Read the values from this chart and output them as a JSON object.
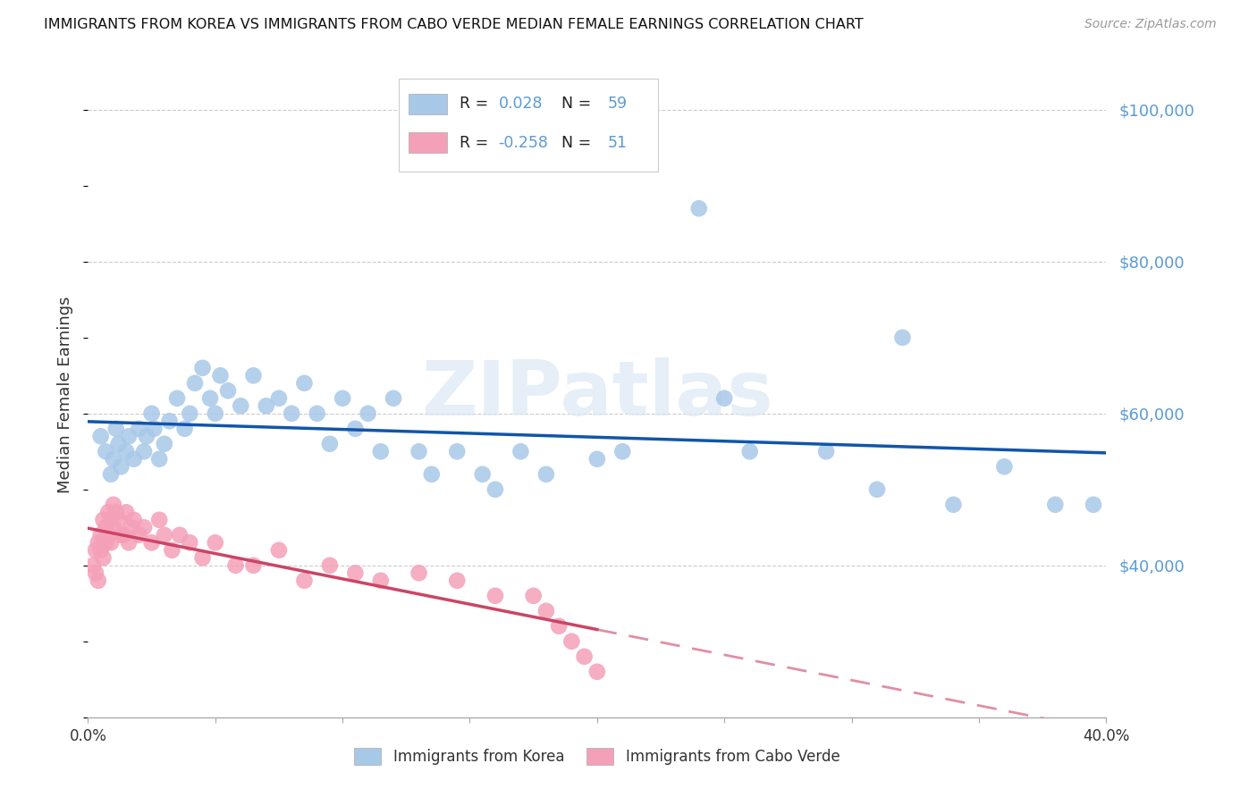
{
  "title": "IMMIGRANTS FROM KOREA VS IMMIGRANTS FROM CABO VERDE MEDIAN FEMALE EARNINGS CORRELATION CHART",
  "source": "Source: ZipAtlas.com",
  "ylabel": "Median Female Earnings",
  "xlim": [
    0.0,
    0.4
  ],
  "ylim": [
    20000,
    105000
  ],
  "yticks": [
    40000,
    60000,
    80000,
    100000
  ],
  "ytick_labels": [
    "$40,000",
    "$60,000",
    "$80,000",
    "$100,000"
  ],
  "xticks": [
    0.0,
    0.05,
    0.1,
    0.15,
    0.2,
    0.25,
    0.3,
    0.35,
    0.4
  ],
  "xtick_labels": [
    "0.0%",
    "",
    "",
    "",
    "",
    "",
    "",
    "",
    "40.0%"
  ],
  "korea_R": "0.028",
  "korea_N": "59",
  "caboverde_R": "-0.258",
  "caboverde_N": "51",
  "korea_color": "#a8c8e8",
  "caboverde_color": "#f4a0b8",
  "trend_korea_color": "#1155aa",
  "trend_caboverde_color": "#cc4466",
  "background_color": "#ffffff",
  "watermark": "ZIPatlas",
  "legend_korea": "Immigrants from Korea",
  "legend_caboverde": "Immigrants from Cabo Verde",
  "text_color": "#333333",
  "grid_color": "#cccccc",
  "axis_color": "#aaaaaa",
  "ytick_color": "#5b9bd5",
  "korea_x": [
    0.005,
    0.007,
    0.009,
    0.01,
    0.011,
    0.012,
    0.013,
    0.015,
    0.016,
    0.018,
    0.02,
    0.022,
    0.023,
    0.025,
    0.026,
    0.028,
    0.03,
    0.032,
    0.035,
    0.038,
    0.04,
    0.042,
    0.045,
    0.048,
    0.05,
    0.052,
    0.055,
    0.06,
    0.065,
    0.07,
    0.075,
    0.08,
    0.085,
    0.09,
    0.095,
    0.1,
    0.105,
    0.11,
    0.115,
    0.12,
    0.13,
    0.135,
    0.145,
    0.155,
    0.16,
    0.17,
    0.18,
    0.2,
    0.21,
    0.24,
    0.25,
    0.26,
    0.29,
    0.31,
    0.32,
    0.34,
    0.36,
    0.38,
    0.395
  ],
  "korea_y": [
    57000,
    55000,
    52000,
    54000,
    58000,
    56000,
    53000,
    55000,
    57000,
    54000,
    58000,
    55000,
    57000,
    60000,
    58000,
    54000,
    56000,
    59000,
    62000,
    58000,
    60000,
    64000,
    66000,
    62000,
    60000,
    65000,
    63000,
    61000,
    65000,
    61000,
    62000,
    60000,
    64000,
    60000,
    56000,
    62000,
    58000,
    60000,
    55000,
    62000,
    55000,
    52000,
    55000,
    52000,
    50000,
    55000,
    52000,
    54000,
    55000,
    87000,
    62000,
    55000,
    55000,
    50000,
    70000,
    48000,
    53000,
    48000,
    48000
  ],
  "caboverde_x": [
    0.002,
    0.003,
    0.003,
    0.004,
    0.004,
    0.005,
    0.005,
    0.006,
    0.006,
    0.007,
    0.007,
    0.008,
    0.008,
    0.009,
    0.009,
    0.01,
    0.01,
    0.011,
    0.012,
    0.013,
    0.014,
    0.015,
    0.016,
    0.017,
    0.018,
    0.02,
    0.022,
    0.025,
    0.028,
    0.03,
    0.033,
    0.036,
    0.04,
    0.045,
    0.05,
    0.058,
    0.065,
    0.075,
    0.085,
    0.095,
    0.105,
    0.115,
    0.13,
    0.145,
    0.16,
    0.175,
    0.18,
    0.185,
    0.19,
    0.195,
    0.2
  ],
  "caboverde_y": [
    40000,
    42000,
    39000,
    38000,
    43000,
    44000,
    42000,
    46000,
    41000,
    45000,
    43000,
    44000,
    47000,
    43000,
    46000,
    45000,
    48000,
    47000,
    46000,
    44000,
    44000,
    47000,
    43000,
    45000,
    46000,
    44000,
    45000,
    43000,
    46000,
    44000,
    42000,
    44000,
    43000,
    41000,
    43000,
    40000,
    40000,
    42000,
    38000,
    40000,
    39000,
    38000,
    39000,
    38000,
    36000,
    36000,
    34000,
    32000,
    30000,
    28000,
    26000
  ]
}
